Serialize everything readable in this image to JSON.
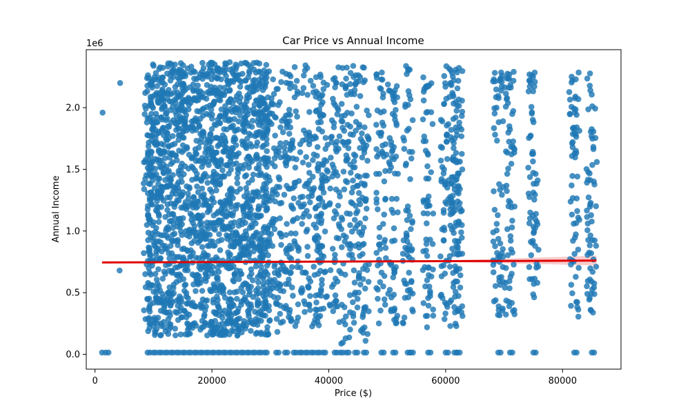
{
  "chart_data": {
    "type": "scatter",
    "title": "Car Price vs Annual Income",
    "xlabel": "Price ($)",
    "ylabel": "Annual Income",
    "y_offset_label": "1e6",
    "xlim": [
      -1500,
      90000
    ],
    "ylim": [
      -120000,
      2470000
    ],
    "x_ticks": [
      0,
      20000,
      40000,
      60000,
      80000
    ],
    "x_tick_labels": [
      "0",
      "20000",
      "40000",
      "60000",
      "80000"
    ],
    "y_ticks": [
      0,
      500000,
      1000000,
      1500000,
      2000000
    ],
    "y_tick_labels": [
      "0.0",
      "0.5",
      "1.0",
      "1.5",
      "2.0"
    ],
    "grid": false,
    "colors": {
      "points": "#1f77b4",
      "regression": "#e00000",
      "confidence_band": "#f4b7b7"
    },
    "regression_line": {
      "x": [
        1200,
        85800
      ],
      "y": [
        745000,
        760000
      ]
    },
    "point_groups": {
      "dense_range": {
        "x": [
          9000,
          30000
        ],
        "y": [
          150000,
          2370000
        ]
      },
      "columns": [
        {
          "x": 9200,
          "y": [
            150000,
            2300000
          ]
        },
        {
          "x": 31000,
          "y": [
            180000,
            2350000
          ]
        },
        {
          "x": 32500,
          "y": [
            250000,
            2300000
          ]
        },
        {
          "x": 34000,
          "y": [
            200000,
            2330000
          ]
        },
        {
          "x": 36000,
          "y": [
            250000,
            2350000
          ]
        },
        {
          "x": 38000,
          "y": [
            220000,
            2370000
          ]
        },
        {
          "x": 39000,
          "y": [
            300000,
            2300000
          ]
        },
        {
          "x": 41000,
          "y": [
            250000,
            2350000
          ]
        },
        {
          "x": 43000,
          "y": [
            80000,
            2330000
          ]
        },
        {
          "x": 44500,
          "y": [
            250000,
            2340000
          ]
        },
        {
          "x": 46000,
          "y": [
            100000,
            2330000
          ]
        },
        {
          "x": 49000,
          "y": [
            240000,
            2300000
          ]
        },
        {
          "x": 51000,
          "y": [
            200000,
            2300000
          ]
        },
        {
          "x": 53500,
          "y": [
            250000,
            2340000
          ]
        },
        {
          "x": 57000,
          "y": [
            210000,
            2250000
          ]
        },
        {
          "x": 60000,
          "y": [
            250000,
            2350000
          ]
        },
        {
          "x": 61500,
          "y": [
            220000,
            2350000
          ]
        },
        {
          "x": 62000,
          "y": [
            200000,
            2330000
          ]
        },
        {
          "x": 69000,
          "y": [
            300000,
            2340000
          ]
        },
        {
          "x": 71000,
          "y": [
            300000,
            2300000
          ]
        },
        {
          "x": 75000,
          "y": [
            450000,
            2300000
          ]
        },
        {
          "x": 82000,
          "y": [
            270000,
            2350000
          ]
        },
        {
          "x": 85000,
          "y": [
            300000,
            2300000
          ]
        }
      ],
      "zero_income_x": [
        9000,
        10000,
        11000,
        12000,
        13000,
        14000,
        15000,
        16000,
        17000,
        18000,
        19000,
        20000,
        21000,
        22000,
        23000,
        24000,
        25000,
        26000,
        27000,
        28000,
        29000,
        31000,
        32500,
        34000,
        35000,
        36000,
        37000,
        38000,
        39000,
        41000,
        42000,
        43000,
        44500,
        46000,
        49000,
        51000,
        53500,
        54000,
        57000,
        60000,
        61500,
        62000,
        69000,
        71000,
        75000,
        82000,
        85000
      ],
      "outliers": [
        {
          "x": 1300,
          "y": 1960000
        },
        {
          "x": 4300,
          "y": 2200000
        },
        {
          "x": 4200,
          "y": 680000
        },
        {
          "x": 1200,
          "y": 15000
        },
        {
          "x": 1800,
          "y": 15000
        },
        {
          "x": 2300,
          "y": 15000
        }
      ]
    }
  }
}
